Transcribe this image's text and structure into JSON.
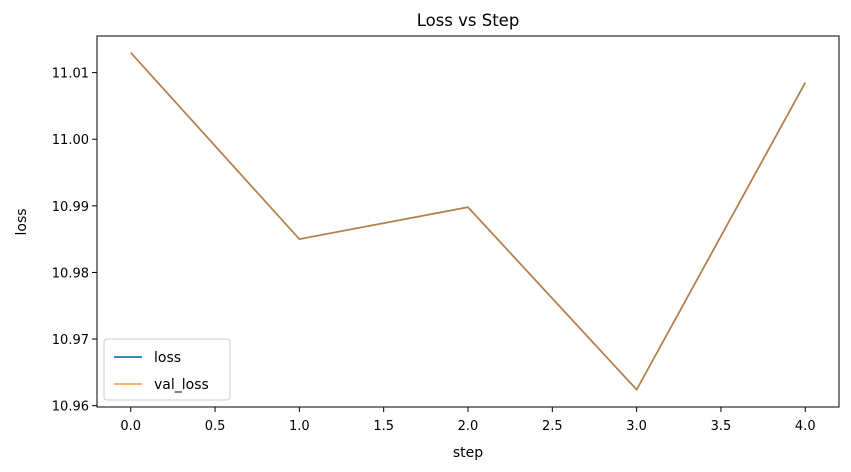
{
  "chart_data": {
    "type": "line",
    "title": "Loss vs Step",
    "xlabel": "step",
    "ylabel": "loss",
    "x": [
      0.0,
      1.0,
      2.0,
      3.0,
      4.0
    ],
    "series": [
      {
        "name": "loss",
        "color": "#1f77b4",
        "values": [
          11.013,
          10.985,
          10.9898,
          10.9624,
          11.0085
        ]
      },
      {
        "name": "val_loss",
        "color": "#ff7f0e",
        "values": [
          11.013,
          10.985,
          10.9898,
          10.9624,
          11.0085
        ]
      }
    ],
    "xlim": [
      -0.2,
      4.2
    ],
    "ylim": [
      10.9598,
      11.0155
    ],
    "xticks": [
      "0.0",
      "0.5",
      "1.0",
      "1.5",
      "2.0",
      "2.5",
      "3.0",
      "3.5",
      "4.0"
    ],
    "yticks": [
      "10.96",
      "10.97",
      "10.98",
      "10.99",
      "11.00",
      "11.01"
    ],
    "grid": false,
    "legend_position": "lower-left"
  }
}
